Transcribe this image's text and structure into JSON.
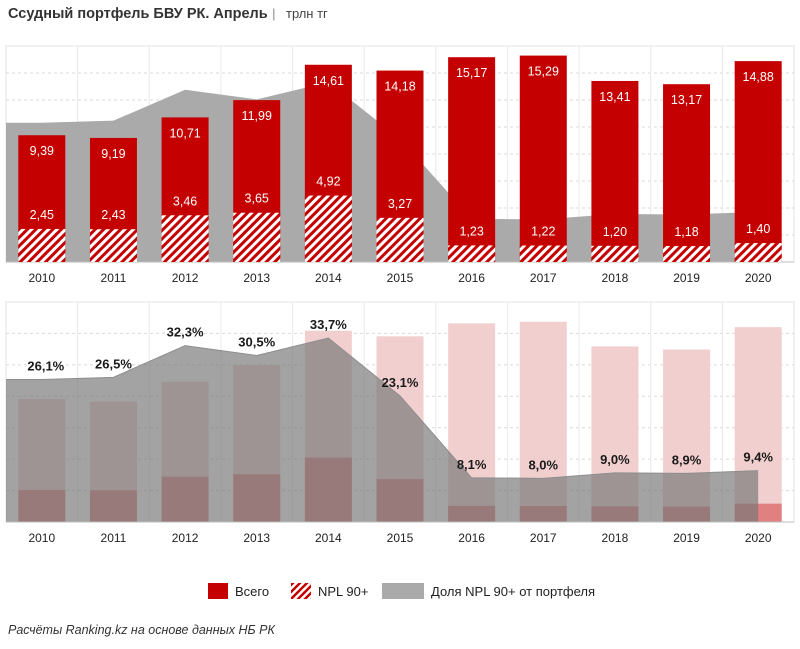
{
  "header": {
    "title": "Ссудный портфель БВУ РК. Апрель",
    "separator": "|",
    "unit": "трлн тг"
  },
  "chart_data": [
    {
      "type": "bar",
      "categories": [
        "2010",
        "2011",
        "2012",
        "2013",
        "2014",
        "2015",
        "2016",
        "2017",
        "2018",
        "2019",
        "2020"
      ],
      "series": [
        {
          "name": "Всего",
          "values": [
            9.39,
            9.19,
            10.71,
            11.99,
            14.61,
            14.18,
            15.17,
            15.29,
            13.41,
            13.17,
            14.88
          ],
          "labels": [
            "9,39",
            "9,19",
            "10,71",
            "11,99",
            "14,61",
            "14,18",
            "15,17",
            "15,29",
            "13,41",
            "13,17",
            "14,88"
          ]
        },
        {
          "name": "NPL 90+",
          "values": [
            2.45,
            2.43,
            3.46,
            3.65,
            4.92,
            3.27,
            1.23,
            1.22,
            1.2,
            1.18,
            1.4
          ],
          "labels": [
            "2,45",
            "2,43",
            "3,46",
            "3,65",
            "4,92",
            "3,27",
            "1,23",
            "1,22",
            "1,20",
            "1,18",
            "1,40"
          ]
        }
      ],
      "background_area": {
        "name": "Доля NPL 90+ от портфеля",
        "values": [
          26.1,
          26.5,
          32.3,
          30.5,
          33.7,
          23.1,
          8.1,
          8.0,
          9.0,
          8.9,
          9.4
        ]
      },
      "ylim": [
        0,
        16
      ],
      "grid": true,
      "colors": {
        "total": "#c40000",
        "npl": "#c40000",
        "share": "#aaaaaa"
      }
    },
    {
      "type": "area",
      "categories": [
        "2010",
        "2011",
        "2012",
        "2013",
        "2014",
        "2015",
        "2016",
        "2017",
        "2018",
        "2019",
        "2020"
      ],
      "series": [
        {
          "name": "Доля NPL 90+ от портфеля",
          "values": [
            26.1,
            26.5,
            32.3,
            30.5,
            33.7,
            23.1,
            8.1,
            8.0,
            9.0,
            8.9,
            9.4
          ],
          "labels": [
            "26,1%",
            "26,5%",
            "32,3%",
            "30,5%",
            "33,7%",
            "23,1%",
            "8,1%",
            "8,0%",
            "9,0%",
            "8,9%",
            "9,4%"
          ]
        }
      ],
      "background_bars": {
        "total": [
          9.39,
          9.19,
          10.71,
          11.99,
          14.61,
          14.18,
          15.17,
          15.29,
          13.41,
          13.17,
          14.88
        ],
        "npl": [
          2.45,
          2.43,
          3.46,
          3.65,
          4.92,
          3.27,
          1.23,
          1.22,
          1.2,
          1.18,
          1.4
        ]
      },
      "ylim": [
        0,
        40
      ],
      "grid": true,
      "colors": {
        "share": "#a3a3a3",
        "bars_faded": "#f2cfcf",
        "npl_faded": "#e08080"
      }
    }
  ],
  "legend": {
    "items": [
      {
        "label": "Всего",
        "swatch": "solid"
      },
      {
        "label": "NPL 90+",
        "swatch": "hatched"
      },
      {
        "label": "Доля NPL 90+ от портфеля",
        "swatch": "area"
      }
    ],
    "placement": "bottom"
  },
  "footer": {
    "source": "Расчёты Ranking.kz  на основе данных  НБ РК"
  }
}
